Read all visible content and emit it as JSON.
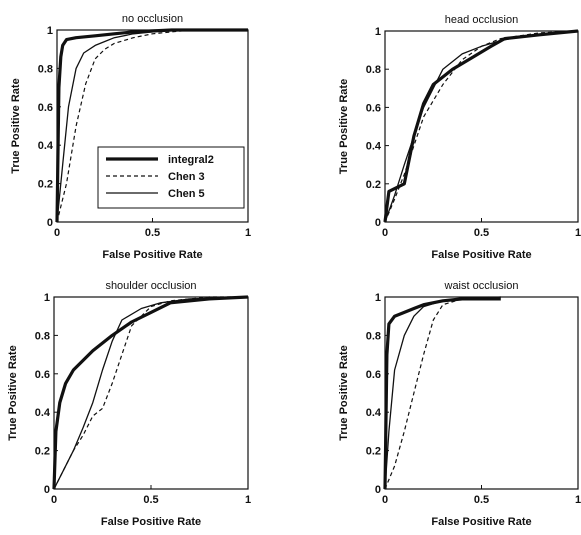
{
  "colors": {
    "axis": "#111111",
    "background": "#ffffff"
  },
  "chart_data": [
    {
      "type": "line",
      "title": "no occlusion",
      "xlabel": "False Positive Rate",
      "ylabel": "True Positive Rate",
      "xlim": [
        0,
        1
      ],
      "ylim": [
        0,
        1
      ],
      "xticks": [
        "0",
        "0.5",
        "1"
      ],
      "yticks": [
        "0",
        "0.2",
        "0.4",
        "0.6",
        "0.8",
        "1"
      ],
      "grid": false,
      "legend": {
        "placement": "bottom-right",
        "show": true
      },
      "series": [
        {
          "name": "integral2",
          "style": "thick-solid",
          "x": [
            0,
            0.01,
            0.02,
            0.03,
            0.05,
            0.1,
            0.2,
            0.3,
            0.4,
            0.6,
            0.8,
            1
          ],
          "y": [
            0,
            0.7,
            0.86,
            0.92,
            0.95,
            0.96,
            0.97,
            0.98,
            0.99,
            1.0,
            1.0,
            1.0
          ]
        },
        {
          "name": "Chen 3",
          "style": "dashed",
          "x": [
            0,
            0.05,
            0.1,
            0.15,
            0.2,
            0.25,
            0.3,
            0.4,
            0.5,
            0.7,
            1
          ],
          "y": [
            0,
            0.2,
            0.5,
            0.72,
            0.85,
            0.9,
            0.93,
            0.96,
            0.98,
            1.0,
            1.0
          ]
        },
        {
          "name": "Chen 5",
          "style": "thin-solid",
          "x": [
            0,
            0.03,
            0.06,
            0.1,
            0.14,
            0.2,
            0.25,
            0.3,
            0.4,
            0.6,
            1
          ],
          "y": [
            0,
            0.3,
            0.6,
            0.8,
            0.88,
            0.92,
            0.94,
            0.96,
            0.98,
            1.0,
            1.0
          ]
        }
      ]
    },
    {
      "type": "line",
      "title": "head occlusion",
      "xlabel": "False Positive Rate",
      "ylabel": "True Positive Rate",
      "xlim": [
        0,
        1
      ],
      "ylim": [
        0,
        1
      ],
      "xticks": [
        "0",
        "0.5",
        "1"
      ],
      "yticks": [
        "0",
        "0.2",
        "0.4",
        "0.6",
        "0.8",
        "1"
      ],
      "grid": false,
      "legend": {
        "show": false
      },
      "series": [
        {
          "name": "integral2",
          "style": "thick-solid",
          "x": [
            0,
            0.02,
            0.1,
            0.15,
            0.2,
            0.25,
            0.35,
            0.45,
            0.55,
            0.62,
            0.8,
            1
          ],
          "y": [
            0,
            0.16,
            0.2,
            0.45,
            0.62,
            0.72,
            0.8,
            0.86,
            0.92,
            0.96,
            0.98,
            1.0
          ]
        },
        {
          "name": "Chen 3",
          "style": "dashed",
          "x": [
            0,
            0.05,
            0.1,
            0.2,
            0.3,
            0.4,
            0.5,
            0.6,
            0.8,
            1
          ],
          "y": [
            0,
            0.12,
            0.25,
            0.55,
            0.72,
            0.85,
            0.92,
            0.96,
            0.99,
            1.0
          ]
        },
        {
          "name": "Chen 5",
          "style": "thin-solid",
          "x": [
            0,
            0.05,
            0.1,
            0.2,
            0.3,
            0.4,
            0.5,
            0.6,
            0.7,
            0.85,
            1
          ],
          "y": [
            0,
            0.14,
            0.3,
            0.6,
            0.8,
            0.88,
            0.92,
            0.95,
            0.97,
            0.99,
            1.0
          ]
        }
      ]
    },
    {
      "type": "line",
      "title": "shoulder occlusion",
      "xlabel": "False Positive Rate",
      "ylabel": "True Positive Rate",
      "xlim": [
        0,
        1
      ],
      "ylim": [
        0,
        1
      ],
      "xticks": [
        "0",
        "0.5",
        "1"
      ],
      "yticks": [
        "0",
        "0.2",
        "0.4",
        "0.6",
        "0.8",
        "1"
      ],
      "grid": false,
      "legend": {
        "show": false
      },
      "series": [
        {
          "name": "integral2",
          "style": "thick-solid",
          "x": [
            0,
            0.01,
            0.03,
            0.06,
            0.1,
            0.2,
            0.3,
            0.4,
            0.5,
            0.6,
            0.8,
            1
          ],
          "y": [
            0,
            0.3,
            0.45,
            0.55,
            0.62,
            0.72,
            0.8,
            0.87,
            0.92,
            0.97,
            0.99,
            1.0
          ]
        },
        {
          "name": "Chen 3",
          "style": "dashed",
          "x": [
            0,
            0.05,
            0.1,
            0.15,
            0.2,
            0.25,
            0.3,
            0.35,
            0.4,
            0.5,
            0.6,
            0.8,
            1
          ],
          "y": [
            0,
            0.1,
            0.2,
            0.28,
            0.38,
            0.42,
            0.55,
            0.7,
            0.85,
            0.95,
            0.98,
            1.0,
            1.0
          ]
        },
        {
          "name": "Chen 5",
          "style": "thin-solid",
          "x": [
            0,
            0.05,
            0.1,
            0.15,
            0.2,
            0.25,
            0.3,
            0.35,
            0.45,
            0.55,
            0.7,
            1
          ],
          "y": [
            0,
            0.1,
            0.2,
            0.32,
            0.45,
            0.62,
            0.77,
            0.88,
            0.94,
            0.97,
            0.99,
            1.0
          ]
        }
      ]
    },
    {
      "type": "line",
      "title": "waist occlusion",
      "xlabel": "False Positive Rate",
      "ylabel": "True Positive Rate",
      "xlim": [
        0,
        1
      ],
      "ylim": [
        0,
        1
      ],
      "xticks": [
        "0",
        "0.5",
        "1"
      ],
      "yticks": [
        "0",
        "0.2",
        "0.4",
        "0.6",
        "0.8",
        "1"
      ],
      "grid": false,
      "legend": {
        "show": false
      },
      "series": [
        {
          "name": "integral2",
          "style": "thick-solid",
          "x": [
            0,
            0.01,
            0.02,
            0.05,
            0.1,
            0.15,
            0.2,
            0.3,
            0.4,
            0.6
          ],
          "y": [
            0,
            0.7,
            0.86,
            0.9,
            0.92,
            0.94,
            0.96,
            0.98,
            0.99,
            0.99
          ]
        },
        {
          "name": "Chen 3",
          "style": "dashed",
          "x": [
            0,
            0.05,
            0.1,
            0.15,
            0.2,
            0.25,
            0.3,
            0.4,
            0.6
          ],
          "y": [
            0,
            0.12,
            0.3,
            0.5,
            0.7,
            0.88,
            0.96,
            0.99,
            1.0
          ]
        },
        {
          "name": "Chen 5",
          "style": "thin-solid",
          "x": [
            0,
            0.02,
            0.05,
            0.1,
            0.15,
            0.2,
            0.3,
            0.4,
            0.6
          ],
          "y": [
            0,
            0.3,
            0.62,
            0.8,
            0.9,
            0.95,
            0.98,
            0.99,
            1.0
          ]
        }
      ]
    }
  ]
}
